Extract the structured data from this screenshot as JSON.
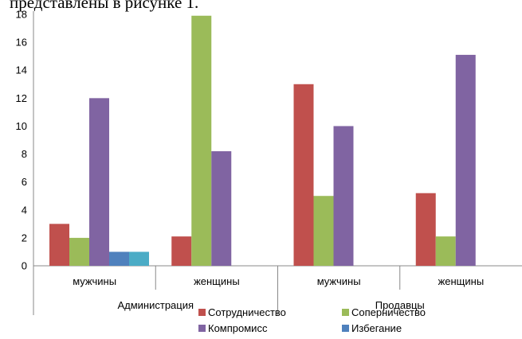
{
  "caption": "представлены в рисунке 1.",
  "chart_data": {
    "type": "bar",
    "title": "",
    "xlabel": "",
    "ylabel": "",
    "ylim": [
      0,
      18
    ],
    "yticks": [
      0,
      2,
      4,
      6,
      8,
      10,
      12,
      14,
      16,
      18
    ],
    "grid": false,
    "legend_position": "bottom",
    "groups": [
      {
        "label": "Администрация",
        "categories": [
          "мужчины",
          "женщины"
        ]
      },
      {
        "label": "Продавцы",
        "categories": [
          "мужчины",
          "женщины"
        ]
      }
    ],
    "categories": [
      "мужчины",
      "женщины",
      "мужчины",
      "женщины"
    ],
    "series": [
      {
        "name": "Сотрудничество",
        "color": "#c0504d",
        "values": [
          3,
          2.1,
          13,
          5.2
        ]
      },
      {
        "name": "Соперничество",
        "color": "#9bbb59",
        "values": [
          2,
          17.9,
          5,
          2.1
        ]
      },
      {
        "name": "Компромисс",
        "color": "#8064a2",
        "values": [
          12,
          8.2,
          10,
          15.1
        ]
      },
      {
        "name": "Избегание",
        "color": "#4f81bd",
        "values": [
          1,
          0,
          0,
          0
        ]
      },
      {
        "name": "",
        "color": "#4bacc6",
        "values": [
          1,
          0,
          0,
          0
        ]
      }
    ]
  }
}
